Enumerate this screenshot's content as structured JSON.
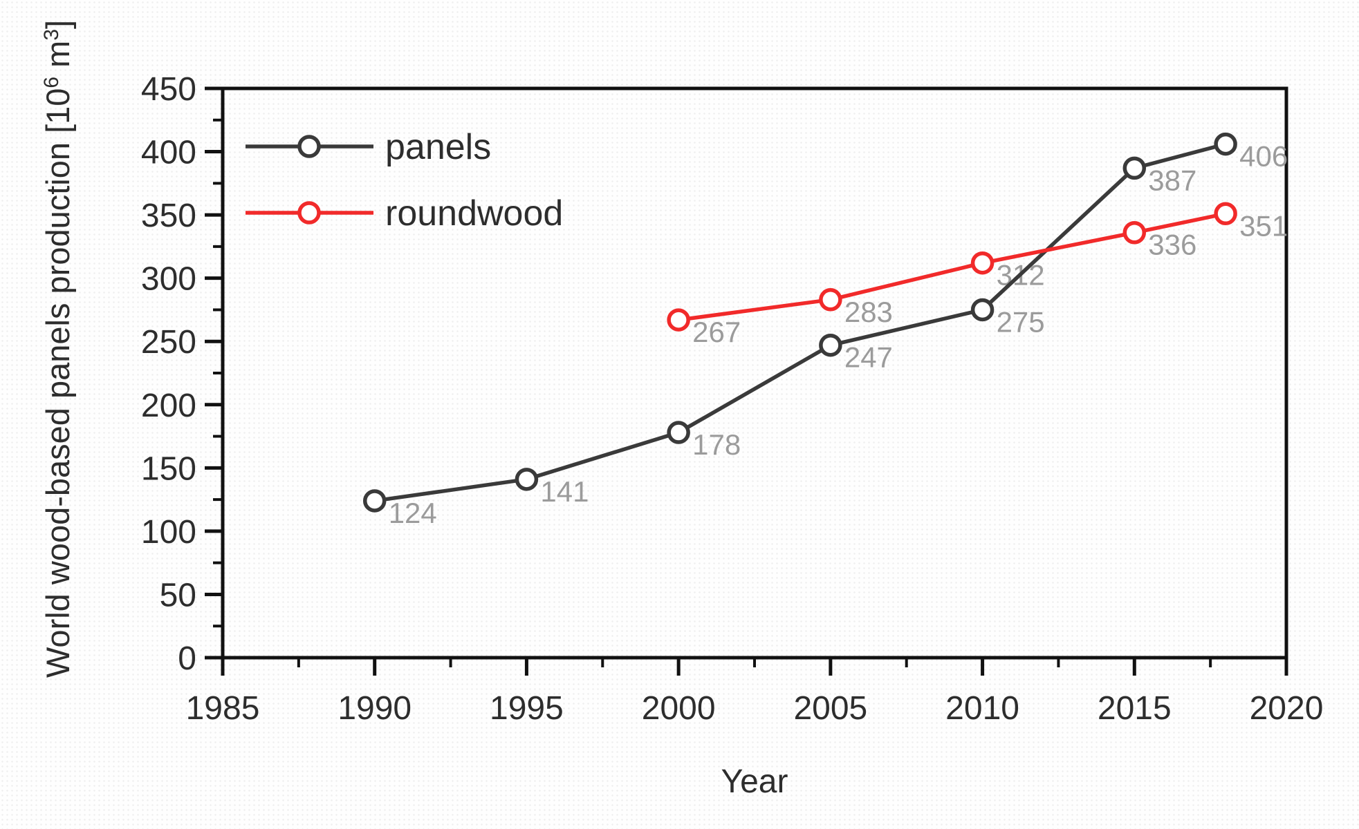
{
  "figure": {
    "background_color": "#fefefe",
    "background_dot_color": "#efefef"
  },
  "chart_data": {
    "type": "line",
    "title": "",
    "xlabel": "Year",
    "ylabel": "World wood-based panels production [10⁶ m³]",
    "ylabel_parts": [
      {
        "text": "World wood-based panels production [10"
      },
      {
        "text": "6",
        "superscript": true
      },
      {
        "text": " m"
      },
      {
        "text": "3",
        "superscript": true
      },
      {
        "text": "]"
      }
    ],
    "xlim": [
      1985,
      2020
    ],
    "ylim": [
      0,
      450
    ],
    "xticks_major": [
      1985,
      1990,
      1995,
      2000,
      2005,
      2010,
      2015,
      2020
    ],
    "xticks_minor": [
      1987.5,
      1992.5,
      1997.5,
      2002.5,
      2007.5,
      2012.5,
      2017.5
    ],
    "yticks_major": [
      0,
      50,
      100,
      150,
      200,
      250,
      300,
      350,
      400,
      450
    ],
    "yticks_minor": [
      25,
      75,
      125,
      175,
      225,
      275,
      325,
      375,
      425
    ],
    "grid": false,
    "legend": {
      "position": "top-left-inside",
      "entries": [
        "panels",
        "roundwood"
      ]
    },
    "series": [
      {
        "name": "panels",
        "color": "#3a3a3a",
        "x": [
          1990,
          1995,
          2000,
          2005,
          2010,
          2015,
          2018
        ],
        "y": [
          124,
          141,
          178,
          247,
          275,
          387,
          406
        ],
        "point_labels": [
          "124",
          "141",
          "178",
          "247",
          "275",
          "387",
          "406"
        ]
      },
      {
        "name": "roundwood",
        "color": "#f12a2a",
        "x": [
          2000,
          2005,
          2010,
          2015,
          2018
        ],
        "y": [
          267,
          283,
          312,
          336,
          351
        ],
        "point_labels": [
          "267",
          "283",
          "312",
          "336",
          "351"
        ]
      }
    ],
    "styles": {
      "point_label_color": "#9b9b9b",
      "tick_label_color": "#2d2d2d",
      "axis_color": "#111111",
      "axis_title_color": "#2d2d2d",
      "marker_fill": "#ffffff"
    }
  }
}
